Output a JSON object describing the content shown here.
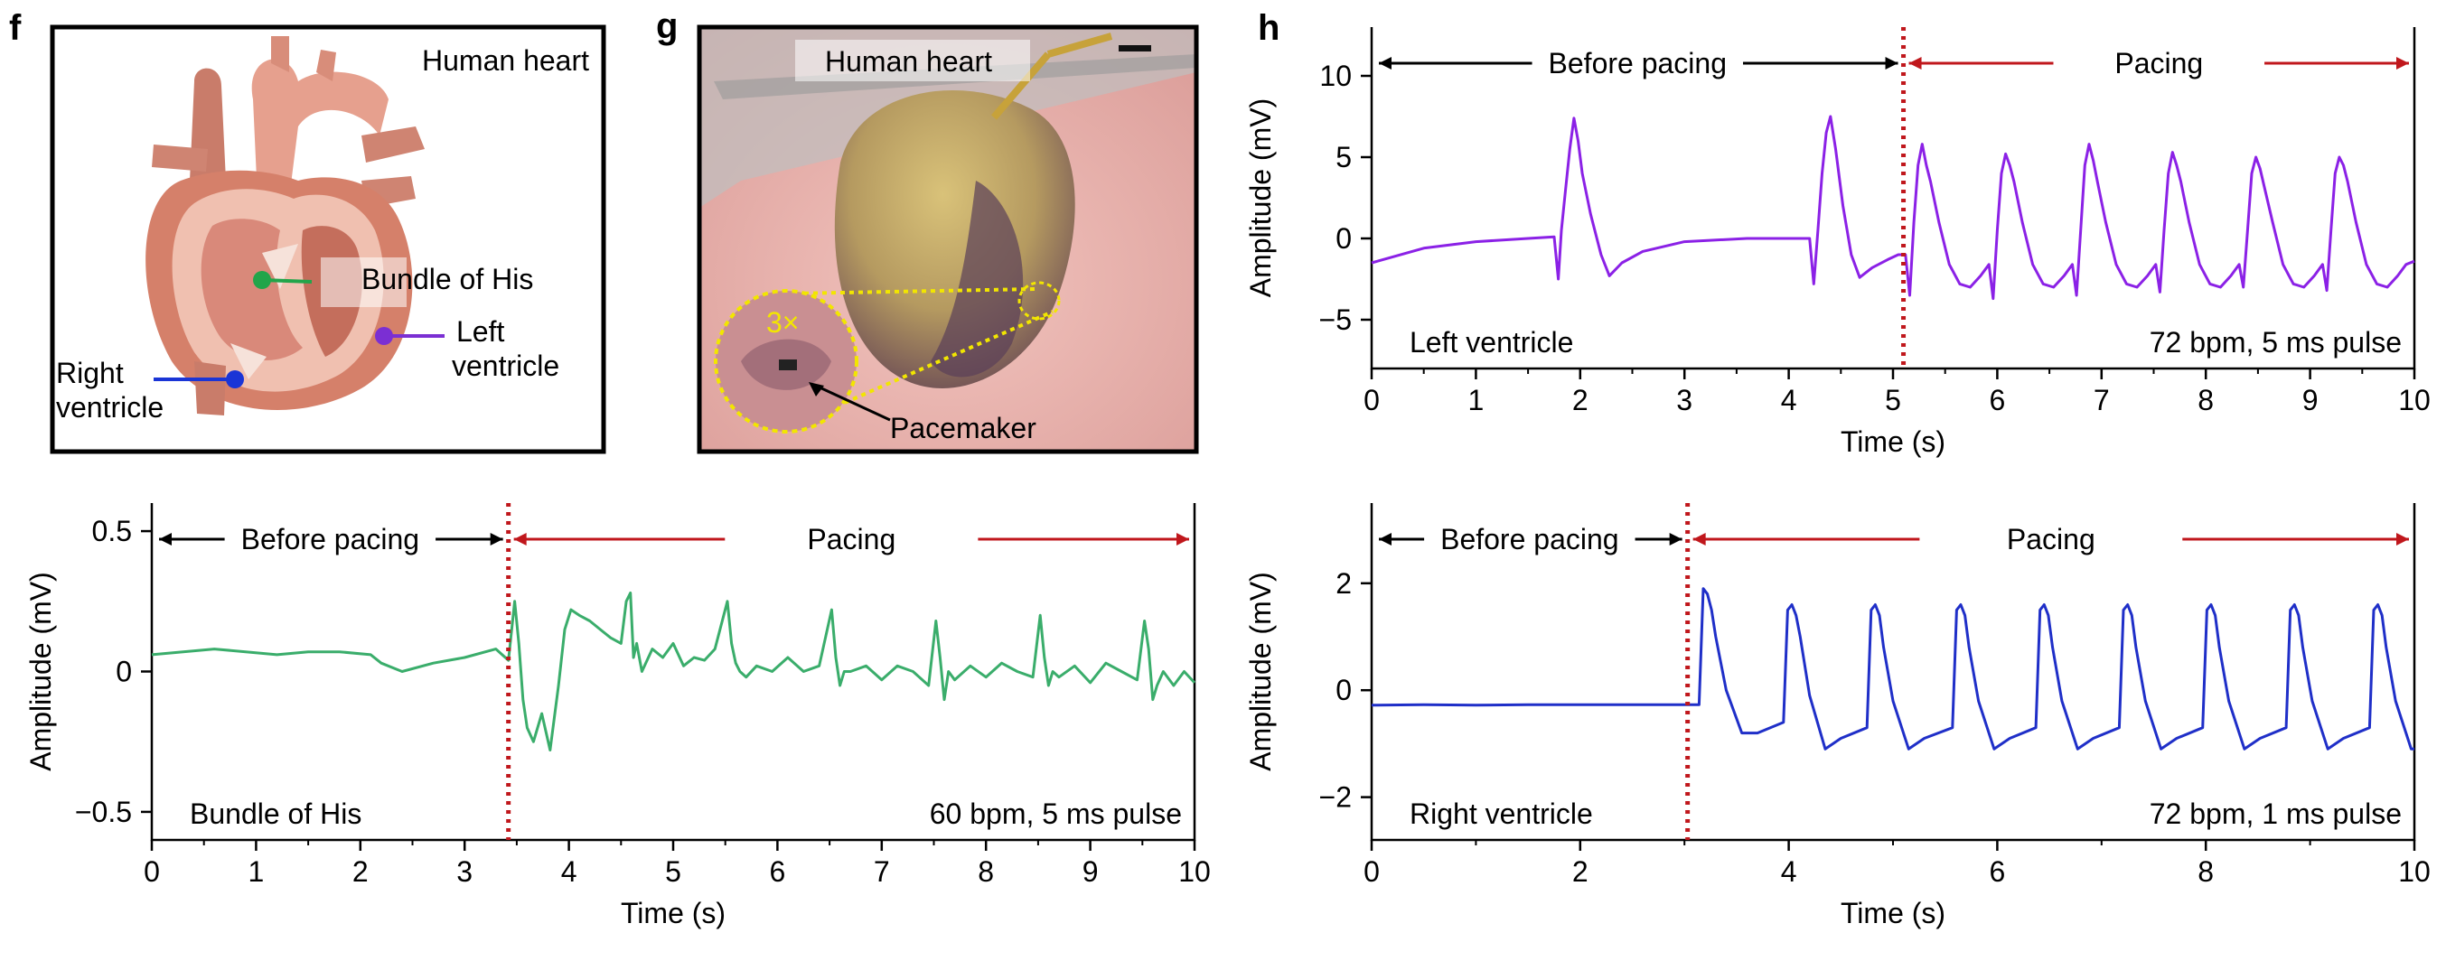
{
  "panels": {
    "f": {
      "letter": "f",
      "title": "Human heart",
      "labels": {
        "his": "Bundle of His",
        "left": "Left\nventricle",
        "right": "Right\nventricle"
      },
      "colors": {
        "his": "#22a54a",
        "left": "#8a2be2",
        "right": "#1a35d6"
      }
    },
    "g": {
      "letter": "g",
      "title": "Human heart",
      "magnification": "3×",
      "pacemaker_label": "Pacemaker"
    },
    "h": {
      "letter": "h"
    }
  },
  "colors": {
    "pacing_arrow": "#c0171c",
    "pacing_line": "#c0171c",
    "before_arrow": "#000000"
  },
  "chart_data": [
    {
      "id": "left-ventricle",
      "type": "line",
      "xlabel": "Time (s)",
      "ylabel": "Amplitude (mV)",
      "xlim": [
        0,
        10
      ],
      "ylim": [
        -8,
        13
      ],
      "xticks": [
        "0",
        "1",
        "2",
        "3",
        "4",
        "5",
        "6",
        "7",
        "8",
        "9",
        "10"
      ],
      "yticks": [
        "10",
        "5",
        "0",
        "−5"
      ],
      "ytick_values": [
        10,
        5,
        0,
        -5
      ],
      "region_before": "Before pacing",
      "region_pacing": "Pacing",
      "pacing_start": 5.1,
      "label_left": "Left ventricle",
      "label_right": "72 bpm, 5 ms pulse",
      "color": "#8b21e6",
      "series": [
        {
          "name": "Left ventricle",
          "x": [
            0,
            0.5,
            1,
            1.5,
            1.75,
            1.79,
            1.82,
            1.86,
            1.9,
            1.94,
            1.98,
            2.02,
            2.1,
            2.2,
            2.28,
            2.4,
            2.6,
            3,
            3.6,
            4,
            4.2,
            4.24,
            4.28,
            4.32,
            4.36,
            4.4,
            4.45,
            4.52,
            4.6,
            4.68,
            4.8,
            4.95,
            5.05,
            5.12,
            5.16,
            5.2,
            5.24,
            5.28,
            5.32,
            5.36,
            5.44,
            5.54,
            5.64,
            5.74,
            5.84,
            5.92,
            5.96,
            6,
            6.04,
            6.08,
            6.12,
            6.16,
            6.24,
            6.34,
            6.44,
            6.54,
            6.64,
            6.72,
            6.76,
            6.8,
            6.84,
            6.88,
            6.92,
            6.96,
            7.04,
            7.14,
            7.24,
            7.34,
            7.44,
            7.52,
            7.56,
            7.6,
            7.64,
            7.68,
            7.72,
            7.76,
            7.84,
            7.94,
            8.04,
            8.14,
            8.24,
            8.32,
            8.36,
            8.4,
            8.44,
            8.48,
            8.52,
            8.56,
            8.64,
            8.74,
            8.84,
            8.94,
            9.04,
            9.12,
            9.16,
            9.2,
            9.24,
            9.28,
            9.32,
            9.36,
            9.44,
            9.54,
            9.64,
            9.74,
            9.84,
            9.92,
            10
          ],
          "y": [
            -1.5,
            -0.6,
            -0.2,
            0,
            0.1,
            -2.5,
            0.5,
            3,
            5.5,
            7.4,
            6,
            4,
            1.5,
            -1,
            -2.3,
            -1.5,
            -0.8,
            -0.2,
            0,
            0,
            0,
            -2.8,
            0.5,
            4,
            6.5,
            7.5,
            5.5,
            2,
            -1,
            -2.4,
            -1.8,
            -1.3,
            -1,
            -1,
            -3.5,
            1,
            4.5,
            5.8,
            4.5,
            3.5,
            1,
            -1.6,
            -2.8,
            -3,
            -2.3,
            -1.6,
            -3.7,
            0.5,
            4,
            5.2,
            4.5,
            3.5,
            1,
            -1.6,
            -2.8,
            -3,
            -2.3,
            -1.6,
            -3.5,
            0.5,
            4.5,
            5.8,
            4.8,
            3.5,
            1,
            -1.6,
            -2.8,
            -3,
            -2.3,
            -1.6,
            -3.3,
            0.5,
            4,
            5.3,
            4.5,
            3.5,
            1,
            -1.6,
            -2.8,
            -3,
            -2.3,
            -1.6,
            -3,
            0.5,
            4,
            5,
            4.3,
            3.2,
            1,
            -1.6,
            -2.8,
            -3,
            -2.3,
            -1.6,
            -3.2,
            0.5,
            4,
            5,
            4.5,
            3.5,
            1,
            -1.6,
            -2.8,
            -3,
            -2.3,
            -1.6,
            -1.4
          ]
        }
      ]
    },
    {
      "id": "bundle-of-his",
      "type": "line",
      "xlabel": "Time (s)",
      "ylabel": "Amplitude (mV)",
      "xlim": [
        0,
        10
      ],
      "ylim": [
        -0.6,
        0.6
      ],
      "xticks": [
        "0",
        "1",
        "2",
        "3",
        "4",
        "5",
        "6",
        "7",
        "8",
        "9",
        "10"
      ],
      "yticks": [
        "0.5",
        "0",
        "−0.5"
      ],
      "ytick_values": [
        0.5,
        0,
        -0.5
      ],
      "region_before": "Before pacing",
      "region_pacing": "Pacing",
      "pacing_start": 3.42,
      "label_left": "Bundle of His",
      "label_right": "60 bpm, 5 ms pulse",
      "color": "#3aad6b",
      "series": [
        {
          "name": "Bundle of His",
          "x": [
            0,
            0.3,
            0.6,
            0.9,
            1.2,
            1.5,
            1.8,
            2.1,
            2.2,
            2.4,
            2.7,
            3,
            3.3,
            3.42,
            3.48,
            3.52,
            3.56,
            3.6,
            3.66,
            3.74,
            3.82,
            3.9,
            3.96,
            4.02,
            4.1,
            4.2,
            4.3,
            4.4,
            4.5,
            4.55,
            4.59,
            4.62,
            4.65,
            4.7,
            4.8,
            4.9,
            5,
            5.1,
            5.2,
            5.3,
            5.4,
            5.52,
            5.56,
            5.6,
            5.64,
            5.7,
            5.8,
            5.95,
            6.1,
            6.25,
            6.4,
            6.52,
            6.56,
            6.6,
            6.64,
            6.7,
            6.85,
            7,
            7.15,
            7.3,
            7.45,
            7.52,
            7.56,
            7.6,
            7.64,
            7.7,
            7.85,
            8,
            8.15,
            8.3,
            8.45,
            8.52,
            8.56,
            8.6,
            8.64,
            8.7,
            8.85,
            9,
            9.15,
            9.3,
            9.45,
            9.52,
            9.56,
            9.6,
            9.64,
            9.7,
            9.8,
            9.9,
            10
          ],
          "y": [
            0.06,
            0.07,
            0.08,
            0.07,
            0.06,
            0.07,
            0.07,
            0.06,
            0.03,
            0,
            0.03,
            0.05,
            0.08,
            0.04,
            0.25,
            0.1,
            -0.1,
            -0.2,
            -0.25,
            -0.15,
            -0.28,
            -0.05,
            0.15,
            0.22,
            0.2,
            0.18,
            0.15,
            0.12,
            0.1,
            0.25,
            0.28,
            0.05,
            0.1,
            0.0,
            0.08,
            0.05,
            0.1,
            0.02,
            0.05,
            0.04,
            0.08,
            0.25,
            0.1,
            0.03,
            0.0,
            -0.02,
            0.02,
            0.0,
            0.05,
            0.0,
            0.02,
            0.22,
            0.05,
            -0.05,
            0.0,
            0.0,
            0.02,
            -0.03,
            0.02,
            0.0,
            -0.05,
            0.18,
            0.05,
            -0.1,
            0.0,
            -0.03,
            0.02,
            -0.02,
            0.03,
            0.0,
            -0.02,
            0.2,
            0.05,
            -0.05,
            0.0,
            -0.02,
            0.02,
            -0.04,
            0.03,
            0.0,
            -0.03,
            0.18,
            0.08,
            -0.1,
            -0.05,
            0.0,
            -0.05,
            0.0,
            -0.04
          ]
        }
      ]
    },
    {
      "id": "right-ventricle",
      "type": "line",
      "xlabel": "Time (s)",
      "ylabel": "Amplitude (mV)",
      "xlim": [
        0,
        10
      ],
      "ylim": [
        -2.8,
        3.5
      ],
      "xticks": [
        "0",
        "2",
        "4",
        "6",
        "8",
        "10"
      ],
      "yticks": [
        "2",
        "0",
        "−2"
      ],
      "ytick_values": [
        2,
        0,
        -2
      ],
      "region_before": "Before pacing",
      "region_pacing": "Pacing",
      "pacing_start": 3.03,
      "label_left": "Right ventricle",
      "label_right": "72 bpm, 1 ms pulse",
      "color": "#1f2fc8",
      "series": [
        {
          "name": "Right ventricle",
          "x": [
            0,
            0.5,
            1,
            1.5,
            2,
            2.5,
            3,
            3.14,
            3.18,
            3.22,
            3.26,
            3.3,
            3.4,
            3.55,
            3.7,
            3.95,
            3.99,
            4.03,
            4.07,
            4.11,
            4.2,
            4.35,
            4.5,
            4.75,
            4.79,
            4.83,
            4.87,
            4.91,
            5,
            5.15,
            5.3,
            5.57,
            5.61,
            5.65,
            5.69,
            5.73,
            5.82,
            5.97,
            6.12,
            6.37,
            6.41,
            6.45,
            6.49,
            6.53,
            6.62,
            6.77,
            6.92,
            7.17,
            7.21,
            7.25,
            7.29,
            7.33,
            7.42,
            7.57,
            7.72,
            7.97,
            8.01,
            8.05,
            8.09,
            8.13,
            8.22,
            8.37,
            8.52,
            8.77,
            8.81,
            8.85,
            8.89,
            8.93,
            9.02,
            9.17,
            9.32,
            9.57,
            9.61,
            9.65,
            9.69,
            9.73,
            9.82,
            9.97,
            10
          ],
          "y": [
            -0.28,
            -0.27,
            -0.28,
            -0.27,
            -0.27,
            -0.27,
            -0.27,
            -0.27,
            1.9,
            1.8,
            1.5,
            1.0,
            0.0,
            -0.8,
            -0.8,
            -0.6,
            1.5,
            1.6,
            1.4,
            1.0,
            -0.1,
            -1.1,
            -0.9,
            -0.7,
            1.5,
            1.6,
            1.4,
            0.8,
            -0.2,
            -1.1,
            -0.9,
            -0.7,
            1.5,
            1.6,
            1.4,
            0.8,
            -0.2,
            -1.1,
            -0.9,
            -0.7,
            1.5,
            1.6,
            1.4,
            0.8,
            -0.2,
            -1.1,
            -0.9,
            -0.7,
            1.5,
            1.6,
            1.4,
            0.8,
            -0.2,
            -1.1,
            -0.9,
            -0.7,
            1.5,
            1.6,
            1.4,
            0.8,
            -0.2,
            -1.1,
            -0.9,
            -0.7,
            1.5,
            1.6,
            1.4,
            0.8,
            -0.2,
            -1.1,
            -0.9,
            -0.7,
            1.5,
            1.6,
            1.4,
            0.8,
            -0.2,
            -1.1,
            -1.1
          ]
        }
      ]
    }
  ]
}
